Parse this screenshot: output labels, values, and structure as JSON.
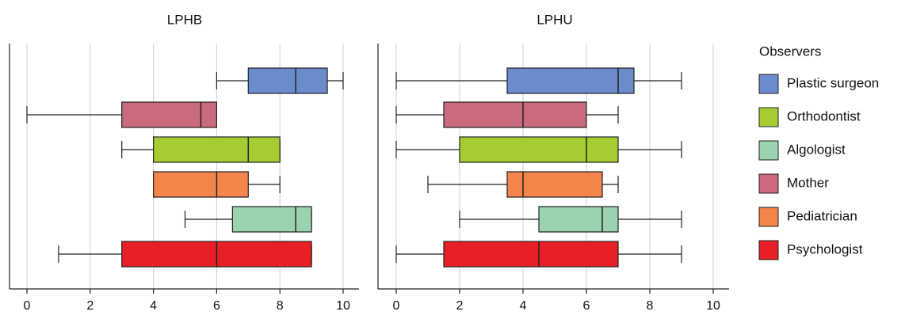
{
  "chart_data": {
    "type": "boxplot",
    "orientation": "horizontal",
    "grid": true,
    "legend_placement": "right",
    "legend": {
      "title": "Observers",
      "entries": [
        {
          "name": "Plastic surgeon",
          "color": "#6a8bcc"
        },
        {
          "name": "Orthodontist",
          "color": "#a6cc34"
        },
        {
          "name": "Algologist",
          "color": "#9bd3ae"
        },
        {
          "name": "Mother",
          "color": "#c96b7c"
        },
        {
          "name": "Pediatrician",
          "color": "#f3844a"
        },
        {
          "name": "Psychologist",
          "color": "#e62026"
        }
      ]
    },
    "panels": [
      {
        "title": "LPHB",
        "xlim": [
          0,
          10
        ],
        "xticks": [
          "0",
          "2",
          "4",
          "6",
          "8",
          "10"
        ],
        "series": [
          {
            "name": "Plastic surgeon",
            "color": "#6a8bcc",
            "min": 6,
            "q1": 7,
            "median": 8.5,
            "q3": 9.5,
            "max": 10
          },
          {
            "name": "Mother",
            "color": "#c96b7c",
            "min": 0,
            "q1": 3,
            "median": 5.5,
            "q3": 6,
            "max": 6
          },
          {
            "name": "Orthodontist",
            "color": "#a6cc34",
            "min": 3,
            "q1": 4,
            "median": 7,
            "q3": 8,
            "max": 8
          },
          {
            "name": "Pediatrician",
            "color": "#f3844a",
            "min": 4,
            "q1": 4,
            "median": 6,
            "q3": 7,
            "max": 8
          },
          {
            "name": "Algologist",
            "color": "#9bd3ae",
            "min": 5,
            "q1": 6.5,
            "median": 8.5,
            "q3": 9,
            "max": 9
          },
          {
            "name": "Psychologist",
            "color": "#e62026",
            "min": 1,
            "q1": 3,
            "median": 6,
            "q3": 9,
            "max": 9
          }
        ]
      },
      {
        "title": "LPHU",
        "xlim": [
          0,
          10
        ],
        "xticks": [
          "0",
          "2",
          "4",
          "6",
          "8",
          "10"
        ],
        "series": [
          {
            "name": "Plastic surgeon",
            "color": "#6a8bcc",
            "min": 0,
            "q1": 3.5,
            "median": 7,
            "q3": 7.5,
            "max": 9
          },
          {
            "name": "Mother",
            "color": "#c96b7c",
            "min": 0,
            "q1": 1.5,
            "median": 4,
            "q3": 6,
            "max": 7
          },
          {
            "name": "Orthodontist",
            "color": "#a6cc34",
            "min": 0,
            "q1": 2,
            "median": 6,
            "q3": 7,
            "max": 9
          },
          {
            "name": "Pediatrician",
            "color": "#f3844a",
            "min": 1,
            "q1": 3.5,
            "median": 4,
            "q3": 6.5,
            "max": 7
          },
          {
            "name": "Algologist",
            "color": "#9bd3ae",
            "min": 2,
            "q1": 4.5,
            "median": 6.5,
            "q3": 7,
            "max": 9
          },
          {
            "name": "Psychologist",
            "color": "#e62026",
            "min": 0,
            "q1": 1.5,
            "median": 4.5,
            "q3": 7,
            "max": 9
          }
        ]
      }
    ]
  }
}
